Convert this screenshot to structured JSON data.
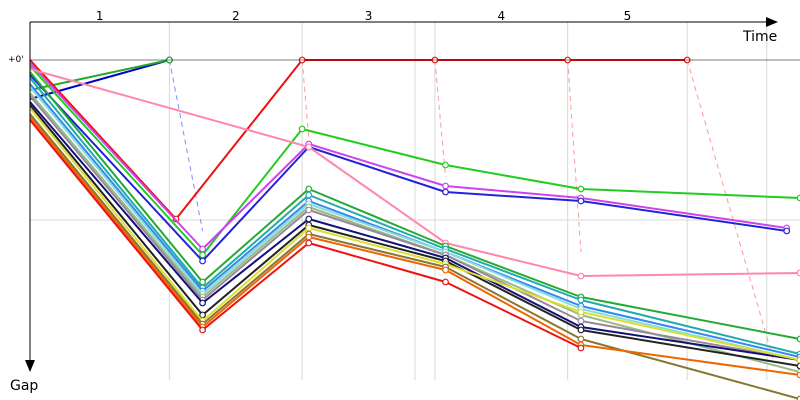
{
  "chart_data": {
    "type": "line",
    "title": "",
    "xlabel": "Time",
    "ylabel": "Gap",
    "zero_label": "+0'",
    "laps": [
      "1",
      "2",
      "3",
      "4",
      "5"
    ],
    "lap_end_times": [
      0,
      1,
      2,
      3,
      4,
      5
    ],
    "x_range": [
      0,
      5.8
    ],
    "y_range": [
      0,
      1
    ],
    "grid": true,
    "legend": "none",
    "leader_lines": [
      {
        "color": "#8888ff",
        "points": [
          [
            1.05,
            0.0
          ],
          [
            1.3,
            0.57
          ]
        ]
      },
      {
        "color": "#ff9999",
        "points": [
          [
            2.05,
            0.0
          ],
          [
            2.1,
            0.26
          ]
        ]
      },
      {
        "color": "#ff9999",
        "points": [
          [
            3.05,
            0.0
          ],
          [
            3.13,
            0.39
          ]
        ]
      },
      {
        "color": "#ff9999",
        "points": [
          [
            4.05,
            0.0
          ],
          [
            4.15,
            0.64
          ]
        ]
      },
      {
        "color": "#ff9999",
        "points": [
          [
            4.95,
            0.0
          ],
          [
            5.6,
            1.0
          ]
        ]
      }
    ],
    "series": [
      {
        "color": "#0000cc",
        "points": [
          [
            0,
            0.13
          ],
          [
            1.05,
            0.0
          ]
        ]
      },
      {
        "color": "#22aa22",
        "points": [
          [
            0,
            0.1
          ],
          [
            1.05,
            0.0
          ]
        ]
      },
      {
        "color": "#ee1111",
        "points": [
          [
            0,
            0.0
          ],
          [
            1.1,
            0.53
          ],
          [
            2.05,
            0.0
          ],
          [
            3.05,
            0.0
          ],
          [
            4.05,
            0.0
          ],
          [
            4.95,
            0.0
          ]
        ]
      },
      {
        "color": "#22cc22",
        "points": [
          [
            0,
            0.02
          ],
          [
            1.3,
            0.65
          ],
          [
            2.05,
            0.23
          ],
          [
            3.13,
            0.35
          ],
          [
            4.15,
            0.43
          ],
          [
            5.8,
            0.46
          ]
        ]
      },
      {
        "color": "#cc44ee",
        "points": [
          [
            0,
            0.01
          ],
          [
            1.3,
            0.63
          ],
          [
            2.1,
            0.28
          ],
          [
            3.13,
            0.42
          ],
          [
            4.15,
            0.46
          ],
          [
            5.7,
            0.56
          ]
        ]
      },
      {
        "color": "#2222dd",
        "points": [
          [
            0,
            0.05
          ],
          [
            1.3,
            0.67
          ],
          [
            2.1,
            0.29
          ],
          [
            3.13,
            0.44
          ],
          [
            4.15,
            0.47
          ],
          [
            5.7,
            0.57
          ]
        ]
      },
      {
        "color": "#ff88aa",
        "points": [
          [
            0,
            0.03
          ],
          [
            2.1,
            0.29
          ],
          [
            3.13,
            0.61
          ],
          [
            4.15,
            0.72
          ],
          [
            5.8,
            0.71
          ]
        ]
      },
      {
        "color": "#22aa33",
        "points": [
          [
            0,
            0.04
          ],
          [
            1.3,
            0.74
          ],
          [
            2.1,
            0.43
          ],
          [
            3.13,
            0.62
          ],
          [
            4.15,
            0.79
          ],
          [
            5.8,
            0.93
          ]
        ]
      },
      {
        "color": "#22aaaa",
        "points": [
          [
            0,
            0.06
          ],
          [
            1.3,
            0.76
          ],
          [
            2.1,
            0.45
          ],
          [
            3.13,
            0.63
          ],
          [
            4.15,
            0.8
          ],
          [
            5.8,
            0.98
          ]
        ]
      },
      {
        "color": "#3388ee",
        "points": [
          [
            0,
            0.08
          ],
          [
            1.3,
            0.77
          ],
          [
            2.1,
            0.47
          ],
          [
            3.13,
            0.64
          ],
          [
            4.15,
            0.82
          ],
          [
            5.8,
            0.99
          ]
        ]
      },
      {
        "color": "#88dddd",
        "points": [
          [
            0,
            0.09
          ],
          [
            1.3,
            0.78
          ],
          [
            2.1,
            0.48
          ],
          [
            3.13,
            0.64
          ],
          [
            4.15,
            0.83
          ],
          [
            5.8,
            1.0
          ]
        ]
      },
      {
        "color": "#99bb88",
        "points": [
          [
            0,
            0.11
          ],
          [
            1.3,
            0.79
          ],
          [
            2.1,
            0.49
          ],
          [
            3.13,
            0.65
          ],
          [
            4.15,
            0.85
          ],
          [
            5.8,
            1.04
          ]
        ]
      },
      {
        "color": "#998899",
        "points": [
          [
            0,
            0.12
          ],
          [
            1.3,
            0.8
          ],
          [
            2.1,
            0.5
          ],
          [
            3.13,
            0.65
          ],
          [
            4.15,
            0.87
          ],
          [
            5.8,
            1.0
          ]
        ]
      },
      {
        "color": "#111177",
        "points": [
          [
            0,
            0.14
          ],
          [
            1.3,
            0.81
          ],
          [
            2.1,
            0.53
          ],
          [
            3.13,
            0.66
          ],
          [
            4.15,
            0.89
          ],
          [
            5.8,
            1.0
          ]
        ]
      },
      {
        "color": "#222222",
        "points": [
          [
            0,
            0.15
          ],
          [
            1.3,
            0.85
          ],
          [
            2.1,
            0.55
          ],
          [
            3.13,
            0.67
          ],
          [
            4.15,
            0.9
          ],
          [
            5.8,
            1.02
          ]
        ]
      },
      {
        "color": "#dddd33",
        "points": [
          [
            0,
            0.16
          ],
          [
            1.3,
            0.87
          ],
          [
            2.1,
            0.56
          ],
          [
            3.13,
            0.68
          ],
          [
            4.15,
            0.84
          ],
          [
            5.8,
            1.0
          ]
        ]
      },
      {
        "color": "#887733",
        "points": [
          [
            0,
            0.18
          ],
          [
            1.3,
            0.88
          ],
          [
            2.1,
            0.58
          ],
          [
            3.13,
            0.69
          ],
          [
            4.15,
            0.93
          ],
          [
            5.8,
            1.13
          ]
        ]
      },
      {
        "color": "#ee6600",
        "points": [
          [
            0,
            0.19
          ],
          [
            1.3,
            0.89
          ],
          [
            2.1,
            0.59
          ],
          [
            3.13,
            0.7
          ],
          [
            4.15,
            0.95
          ],
          [
            5.8,
            1.05
          ]
        ]
      },
      {
        "color": "#ee1111",
        "points": [
          [
            0,
            0.2
          ],
          [
            1.3,
            0.9
          ],
          [
            2.1,
            0.61
          ],
          [
            3.13,
            0.74
          ],
          [
            4.15,
            0.96
          ]
        ]
      }
    ]
  }
}
